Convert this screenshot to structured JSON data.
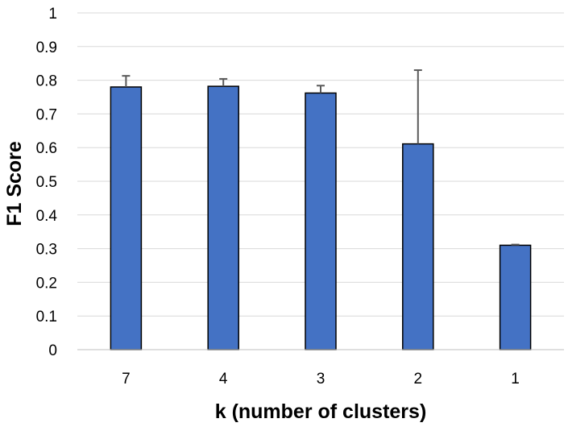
{
  "chart_data": {
    "type": "bar",
    "title": "",
    "xlabel": "k (number of clusters)",
    "ylabel": "F1 Score",
    "categories": [
      "7",
      "4",
      "3",
      "2",
      "1"
    ],
    "values": [
      0.78,
      0.782,
      0.762,
      0.611,
      0.31
    ],
    "error_upper": [
      0.033,
      0.022,
      0.022,
      0.219,
      0.002
    ],
    "ylim": [
      0,
      1
    ],
    "yticks": [
      "0",
      "0.1",
      "0.2",
      "0.3",
      "0.4",
      "0.5",
      "0.6",
      "0.7",
      "0.8",
      "0.9",
      "1"
    ],
    "grid": true,
    "legend": "none",
    "colors": {
      "bar": "#4472C4",
      "bar_edge": "#000000",
      "error_bar": "#595959",
      "grid": "#D9D9D9",
      "axis": "#BFBFBF"
    }
  }
}
